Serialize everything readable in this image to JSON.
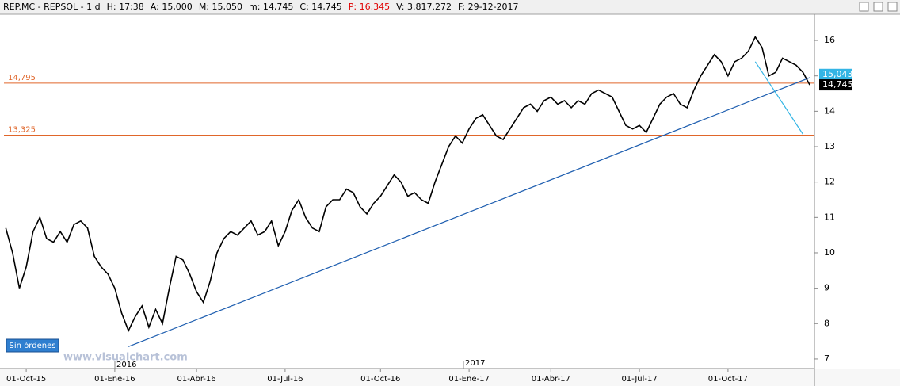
{
  "header": {
    "symbol": "REP.MC - REPSOL - 1 d",
    "fields": [
      {
        "text": "H: 17:38"
      },
      {
        "text": "A: 15,000"
      },
      {
        "text": "M: 15,050"
      },
      {
        "text": "m: 14,745"
      },
      {
        "text": "C: 14,745"
      },
      {
        "text": "P: 16,345",
        "color": "#e00000"
      },
      {
        "text": "V: 3.817.272"
      },
      {
        "text": "F: 29-12-2017"
      }
    ]
  },
  "button": "Sin órdenes",
  "watermark": "www.visualchart.com",
  "year_labels": [
    "2016",
    "2017"
  ],
  "chart_data": {
    "type": "line",
    "color": "#000000",
    "categories": [
      null,
      null,
      null,
      "01-Oct-15",
      null,
      null,
      null,
      null,
      null,
      null,
      null,
      null,
      null,
      null,
      null,
      null,
      "01-Ene-16",
      null,
      null,
      null,
      null,
      null,
      null,
      null,
      null,
      null,
      null,
      null,
      "01-Abr-16",
      null,
      null,
      null,
      null,
      null,
      null,
      null,
      null,
      null,
      null,
      null,
      null,
      "01-Jul-16",
      null,
      null,
      null,
      null,
      null,
      null,
      null,
      null,
      null,
      null,
      null,
      null,
      null,
      "01-Oct-16",
      null,
      null,
      null,
      null,
      null,
      null,
      null,
      null,
      null,
      null,
      null,
      null,
      "01-Ene-17",
      null,
      null,
      null,
      null,
      null,
      null,
      null,
      null,
      null,
      null,
      null,
      "01-Abr-17",
      null,
      null,
      null,
      null,
      null,
      null,
      null,
      null,
      null,
      null,
      null,
      null,
      "01-Jul-17",
      null,
      null,
      null,
      null,
      null,
      null,
      null,
      null,
      null,
      null,
      null,
      null,
      "01-Oct-17",
      null,
      null,
      null,
      null,
      null,
      null,
      null,
      null,
      null,
      null,
      null,
      null
    ],
    "values": [
      10.7,
      10.0,
      9.0,
      9.6,
      10.6,
      11.0,
      10.4,
      10.3,
      10.6,
      10.3,
      10.8,
      10.9,
      10.7,
      9.9,
      9.6,
      9.4,
      9.0,
      8.3,
      7.8,
      8.2,
      8.5,
      7.9,
      8.4,
      8.0,
      9.0,
      9.9,
      9.8,
      9.4,
      8.9,
      8.6,
      9.2,
      10.0,
      10.4,
      10.6,
      10.5,
      10.7,
      10.9,
      10.5,
      10.6,
      10.9,
      10.2,
      10.6,
      11.2,
      11.5,
      11.0,
      10.7,
      10.6,
      11.3,
      11.5,
      11.5,
      11.8,
      11.7,
      11.3,
      11.1,
      11.4,
      11.6,
      11.9,
      12.2,
      12.0,
      11.6,
      11.7,
      11.5,
      11.4,
      12.0,
      12.5,
      13.0,
      13.3,
      13.1,
      13.5,
      13.8,
      13.9,
      13.6,
      13.3,
      13.2,
      13.5,
      13.8,
      14.1,
      14.2,
      14.0,
      14.3,
      14.4,
      14.2,
      14.3,
      14.1,
      14.3,
      14.2,
      14.5,
      14.6,
      14.5,
      14.4,
      14.0,
      13.6,
      13.5,
      13.6,
      13.4,
      13.8,
      14.2,
      14.4,
      14.5,
      14.2,
      14.1,
      14.6,
      15.0,
      15.3,
      15.6,
      15.4,
      15.0,
      15.4,
      15.5,
      15.7,
      16.1,
      15.8,
      15.0,
      15.1,
      15.5,
      15.4,
      15.3,
      15.1,
      14.745
    ],
    "ylim": [
      6.73,
      16.74
    ],
    "yticks": [
      7,
      8,
      9,
      10,
      11,
      12,
      13,
      14,
      15,
      16
    ],
    "levels": [
      {
        "value": 14.795,
        "label": "14,795",
        "color": "#e0662a"
      },
      {
        "value": 13.325,
        "label": "13,325",
        "color": "#e0662a"
      }
    ],
    "price_labels": [
      {
        "value": 15.043,
        "label": "15,043",
        "color": "#33b5e5",
        "text_color": "#ffffff"
      },
      {
        "value": 14.745,
        "label": "14,745",
        "color": "#000000",
        "text_color": "#ffffff"
      }
    ],
    "trendlines": [
      {
        "points": [
          [
            18,
            7.35
          ],
          [
            118,
            14.95
          ]
        ],
        "color": "#1f5fb0"
      },
      {
        "points": [
          [
            110,
            15.4
          ],
          [
            117,
            13.35
          ]
        ],
        "color": "#33b5e5"
      }
    ]
  }
}
